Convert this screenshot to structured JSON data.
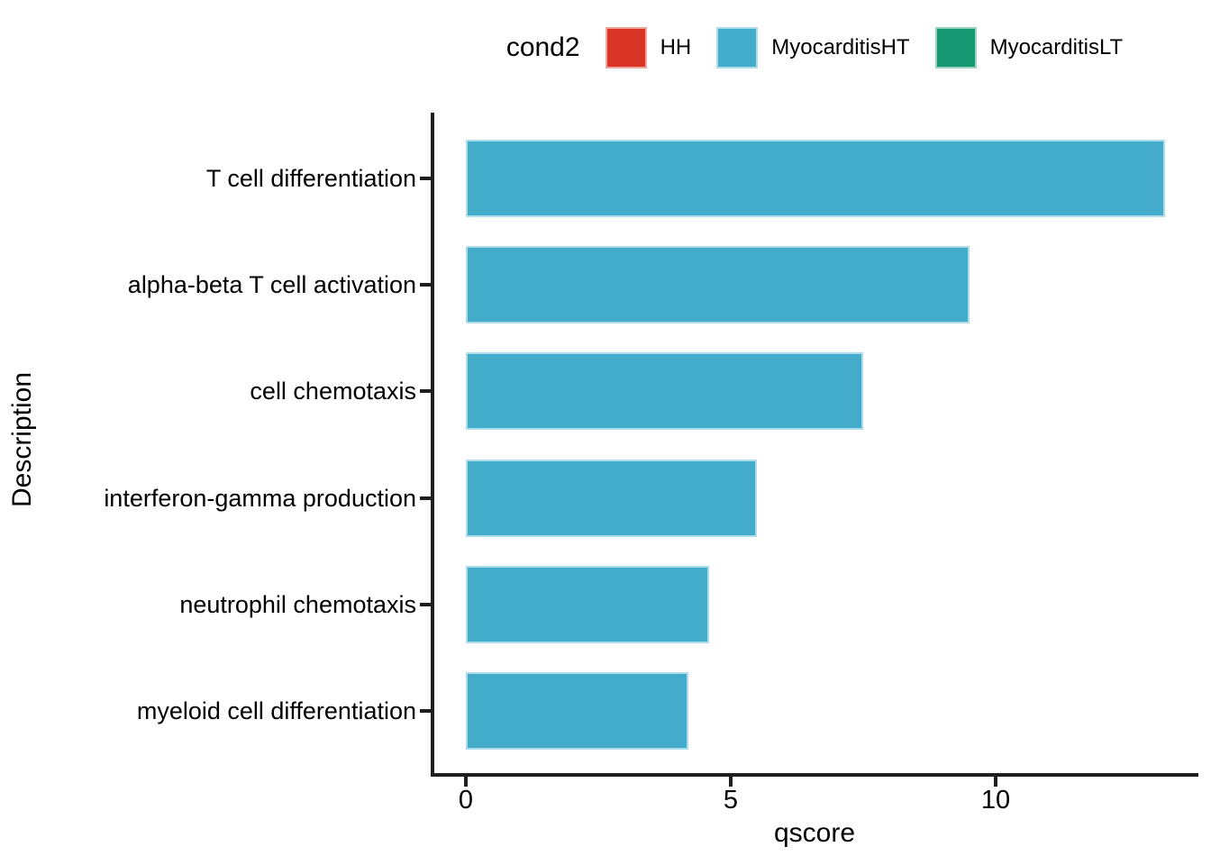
{
  "figure": {
    "background": "#FFFFFF"
  },
  "legend": {
    "title": "cond2",
    "position": "top",
    "items": [
      {
        "label": "HH",
        "color": "#D93526",
        "border": "#EFA79D"
      },
      {
        "label": "MyocarditisHT",
        "color": "#43ACCB",
        "border": "#AEDCEB"
      },
      {
        "label": "MyocarditisLT",
        "color": "#169873",
        "border": "#9AD2C0"
      }
    ]
  },
  "chart_data": {
    "type": "bar",
    "orientation": "horizontal",
    "title": "",
    "xlabel": "qscore",
    "ylabel": "Description",
    "categories": [
      "T cell differentiation",
      "alpha-beta T cell activation",
      "cell chemotaxis",
      "interferon-gamma production",
      "neutrophil chemotaxis",
      "myeloid cell differentiation"
    ],
    "values": [
      13.2,
      9.5,
      7.5,
      5.5,
      4.6,
      4.2
    ],
    "series": [
      {
        "name": "MyocarditisHT",
        "values": [
          13.2,
          9.5,
          7.5,
          5.5,
          4.6,
          4.2
        ]
      }
    ],
    "bar_color": "#43ACCB",
    "bar_border": "#AEDCEB",
    "axis_color": "#1E1E1E",
    "text_color": "#000000",
    "xticks": [
      0,
      5,
      10
    ],
    "xlim": [
      0,
      13.9
    ],
    "grid": false,
    "legend_title": "cond2",
    "legend_position": "top"
  }
}
